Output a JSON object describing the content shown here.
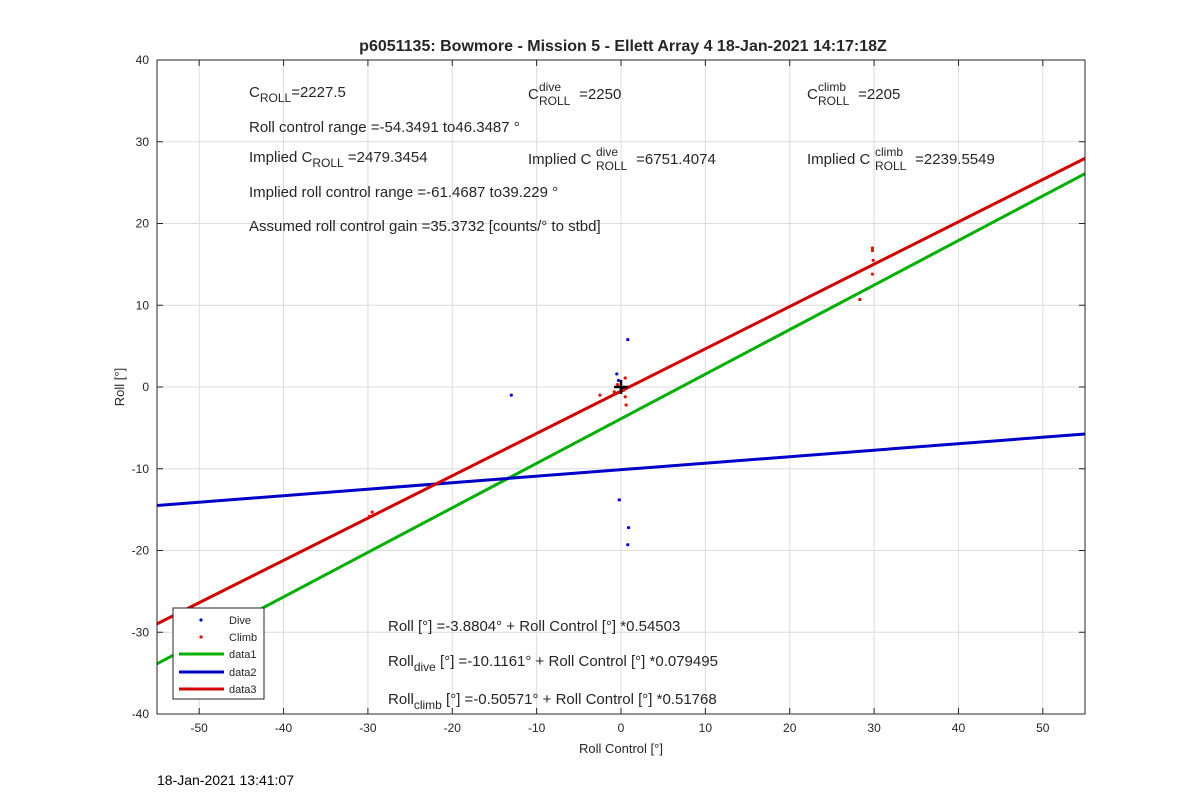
{
  "chart_data": {
    "type": "scatter",
    "title": "p6051135: Bowmore - Mission 5 - Ellett Array 4 18-Jan-2021 14:17:18Z",
    "xlabel": "Roll Control [°]",
    "ylabel": "Roll [°]",
    "xlim": [
      -55,
      55
    ],
    "ylim": [
      -40,
      40
    ],
    "xticks": [
      -50,
      -40,
      -30,
      -20,
      -10,
      0,
      10,
      20,
      30,
      40,
      50
    ],
    "yticks": [
      -40,
      -30,
      -20,
      -10,
      0,
      10,
      20,
      30,
      40
    ],
    "grid": true,
    "legend_position": "bottom-left",
    "series": [
      {
        "name": "Dive",
        "kind": "scatter",
        "color": "#0000ff",
        "points": [
          [
            -13,
            -1
          ],
          [
            0.8,
            5.8
          ],
          [
            -0.5,
            1.6
          ],
          [
            -0.3,
            0.8
          ],
          [
            0.2,
            -0.2
          ],
          [
            -0.2,
            -13.8
          ],
          [
            0.9,
            -17.2
          ],
          [
            0.8,
            -19.3
          ]
        ]
      },
      {
        "name": "Climb",
        "kind": "scatter",
        "color": "#ff0000",
        "points": [
          [
            -29.5,
            -15.3
          ],
          [
            -29.8,
            -15.8
          ],
          [
            29.8,
            17
          ],
          [
            29.8,
            16.7
          ],
          [
            29.9,
            15.5
          ],
          [
            29.8,
            13.8
          ],
          [
            28.3,
            10.7
          ],
          [
            -2.5,
            -1
          ],
          [
            0.5,
            1.1
          ],
          [
            0.5,
            -1.2
          ],
          [
            0.6,
            -2.2
          ],
          [
            -0.4,
            0.3
          ],
          [
            0.3,
            -0.4
          ],
          [
            -0.8,
            -0.6
          ]
        ]
      },
      {
        "name": "data1",
        "kind": "line",
        "color": "#00b000",
        "intercept": -3.8804,
        "slope": 0.54503
      },
      {
        "name": "data2",
        "kind": "line",
        "color": "#0000c8",
        "intercept": -10.1161,
        "slope": 0.079495
      },
      {
        "name": "data3",
        "kind": "line",
        "color": "#d40000",
        "intercept": -0.50571,
        "slope": 0.51768
      }
    ],
    "origin_marker": [
      0,
      0
    ],
    "annotations": {
      "c_roll": {
        "base": "C",
        "sub": "ROLL",
        "value": "=2227.5"
      },
      "c_roll_dive": {
        "base": "C",
        "sup": "dive",
        "sub": "ROLL",
        "value": " =2250"
      },
      "c_roll_climb": {
        "base": "C",
        "sup": "climb",
        "sub": "ROLL",
        "value": " =2205"
      },
      "roll_control_range": "Roll control range =-54.3491 to46.3487 °",
      "implied_c_roll": {
        "prefix": "Implied C",
        "sub": "ROLL",
        "value": " =2479.3454"
      },
      "implied_c_roll_dive": {
        "prefix": "Implied C",
        "sup": "dive",
        "sub": "ROLL",
        "value": " =6751.4074"
      },
      "implied_c_roll_climb": {
        "prefix": "Implied C",
        "sup": "climb",
        "sub": "ROLL",
        "value": " =2239.5549"
      },
      "implied_range": "Implied roll control range =-61.4687 to39.229 °",
      "gain": "Assumed roll control gain =35.3732 [counts/° to stbd]",
      "fit_all": "Roll [°] =-3.8804° + Roll Control [°] *0.54503",
      "fit_dive": {
        "base": "Roll",
        "sub": "dive",
        "rest": " [°] =-10.1161° + Roll Control [°] *0.079495"
      },
      "fit_climb": {
        "base": "Roll",
        "sub": "climb",
        "rest": " [°] =-0.50571° + Roll Control [°] *0.51768"
      }
    }
  },
  "footer": {
    "timestamp": "18-Jan-2021 13:41:07"
  }
}
